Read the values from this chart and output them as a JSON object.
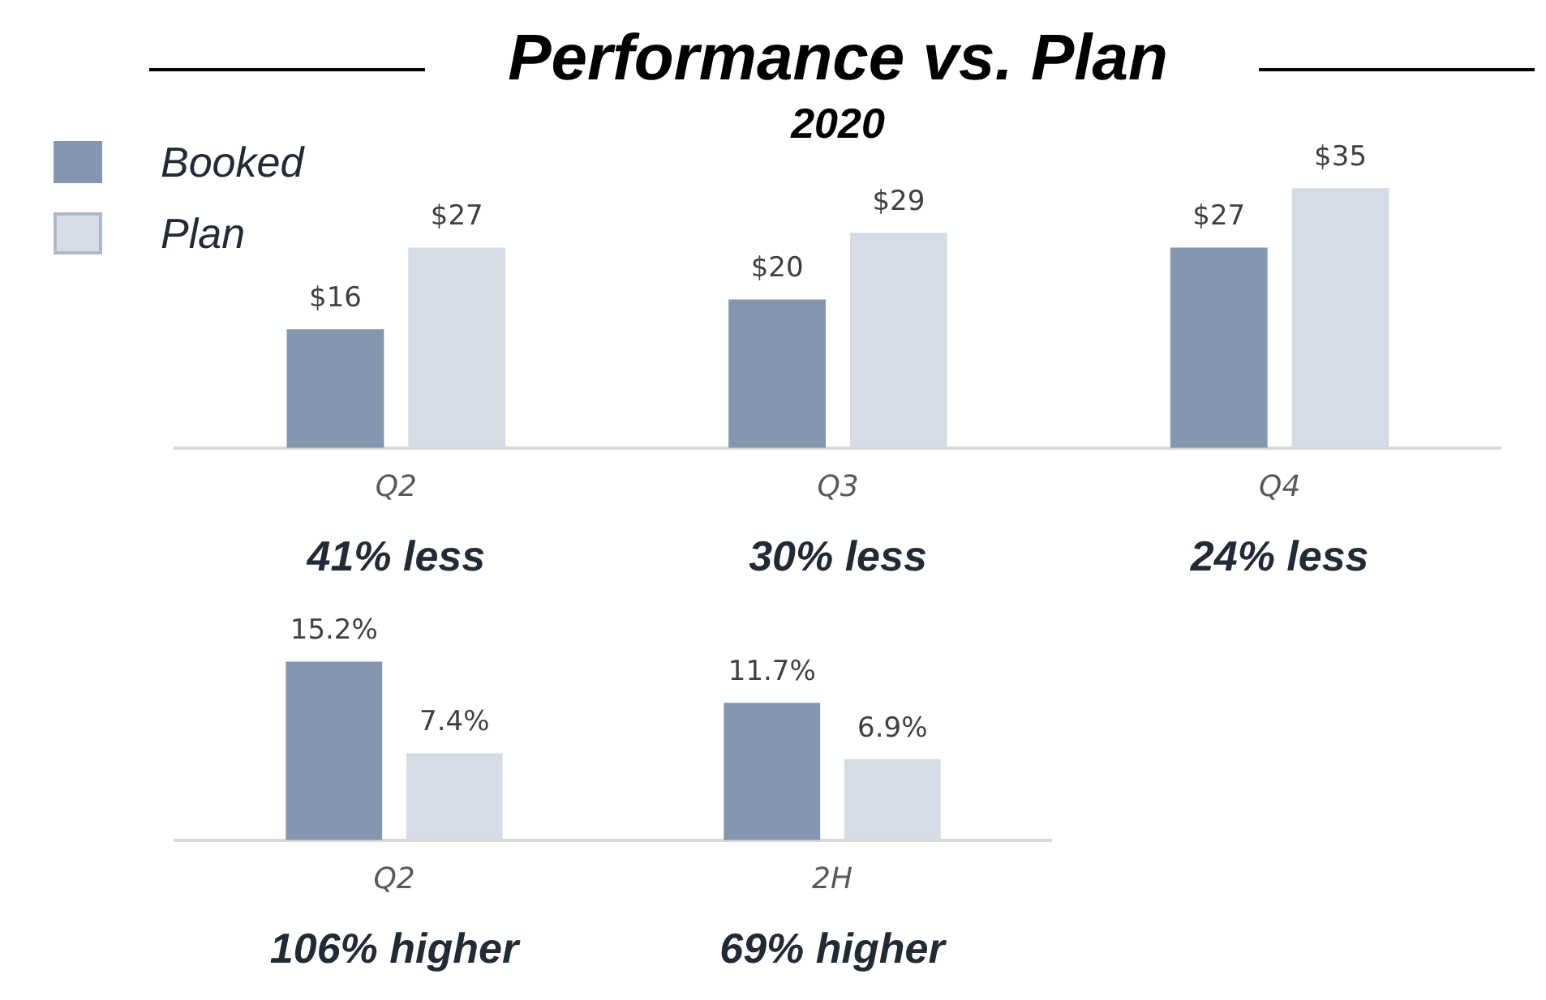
{
  "chart_data": [
    {
      "type": "bar",
      "title": "Performance vs. Plan",
      "subtitle": "2020",
      "categories": [
        "Q2",
        "Q3",
        "Q4"
      ],
      "series": [
        {
          "name": "Booked",
          "color": "#8496b0",
          "values": [
            16,
            20,
            27
          ],
          "value_labels": [
            "$16",
            "$20",
            "$27"
          ]
        },
        {
          "name": "Plan",
          "color": "#d6dce5",
          "values": [
            27,
            29,
            35
          ],
          "value_labels": [
            "$27",
            "$29",
            "$35"
          ]
        }
      ],
      "annotations": [
        "41% less",
        "30% less",
        "24% less"
      ],
      "legend": "top left",
      "grid": false
    },
    {
      "type": "bar",
      "categories": [
        "Q2",
        "2H"
      ],
      "series": [
        {
          "color": "#8496b0",
          "values": [
            15.2,
            11.7
          ],
          "value_labels": [
            "15.2%",
            "11.7%"
          ]
        },
        {
          "color": "#d6dce5",
          "values": [
            7.4,
            6.9
          ],
          "value_labels": [
            "7.4%",
            "6.9%"
          ]
        }
      ],
      "annotations": [
        "106% higher",
        "69% higher"
      ],
      "grid": false
    }
  ]
}
